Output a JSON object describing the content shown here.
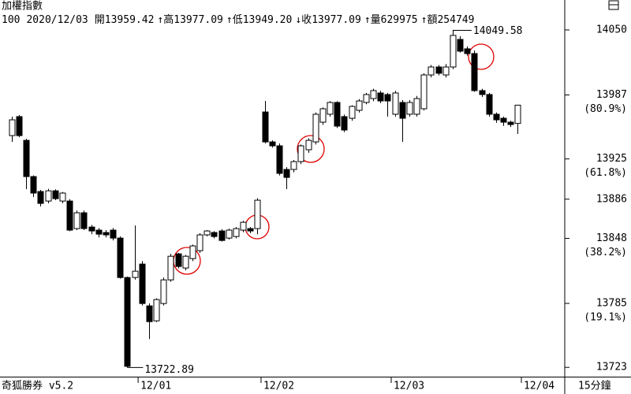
{
  "header": {
    "index_name": "加權指數",
    "count": "100",
    "date": "2020/12/03",
    "items": [
      {
        "label": "開",
        "value": "13959.42"
      },
      {
        "arrow": "↑",
        "label": "高",
        "value": "13977.09"
      },
      {
        "arrow": "↑",
        "label": "低",
        "value": "13949.20"
      },
      {
        "arrow": "↓",
        "label": "收",
        "value": "13977.09"
      },
      {
        "arrow": "↑",
        "label": "量",
        "value": "629975"
      },
      {
        "arrow": "↑",
        "label": "額",
        "value": "254749"
      }
    ]
  },
  "footer": {
    "brand": "奇狐勝券 v5.2",
    "period": "15分鐘"
  },
  "chart_data": {
    "type": "candlestick",
    "open": [
      13947.6,
      13966,
      13943,
      13907.9,
      13893.4,
      13884.2,
      13894.1,
      13884.2,
      13884.2,
      13857.5,
      13872.8,
      13859,
      13856,
      13853.7,
      13856,
      13848.3,
      13810.1,
      13810.1,
      13823.1,
      13782.6,
      13768.1,
      13784.9,
      13807.8,
      13833,
      13819.3,
      13828.4,
      13836.1,
      13851.4,
      13853.7,
      13855.2,
      13848.3,
      13849.8,
      13856,
      13857.5,
      13857.5,
      13970.5,
      13941.5,
      13937.7,
      13914.8,
      13914.8,
      13922.4,
      13933.9,
      13941.5,
      13960.6,
      13968.3,
      13979.7,
      13966,
      13964.4,
      13972.1,
      13979.7,
      13983.5,
      13988.9,
      13987.4,
      13968.3,
      13979.7,
      13968.3,
      13968.3,
      13973.6,
      14006.4,
      14014.1,
      14006.4,
      14014.1,
      14040.8,
      14031.7,
      14027.1,
      13991.2,
      13987.4,
      13968.3,
      13964.4,
      13960.6,
      13959.42
    ],
    "high": [
      13966,
      13967.5,
      13944.5,
      13909,
      13895,
      13896,
      13895.5,
      13893,
      13886,
      13875,
      13875,
      13861,
      13858,
      13856,
      13858,
      13850,
      13811,
      13860.5,
      13826,
      13785,
      13790,
      13810,
      13833,
      13834,
      13832,
      13842,
      13853,
      13856,
      13855,
      13857,
      13857.5,
      13859,
      13865,
      13859,
      13887,
      13981.2,
      13943,
      13940,
      13917,
      13924,
      13939,
      13945,
      13970,
      13975,
      13981,
      13981,
      13968,
      13977,
      13983,
      13989,
      13993,
      13991,
      13989,
      13991,
      13982,
      13982,
      13986,
      14008,
      14016,
      14016,
      14017,
      14049.58,
      14044,
      14034,
      14030,
      13993,
      13989,
      13970,
      13966,
      13962,
      13977.09
    ],
    "low": [
      13941.5,
      13946,
      13895.7,
      13888,
      13878.9,
      13882,
      13885,
      13882,
      13855,
      13856,
      13856,
      13852,
      13849,
      13849,
      13846,
      13809,
      13722.89,
      13808,
      13783,
      13750.5,
      13767,
      13783,
      13806,
      13819,
      13817,
      13826,
      13834,
      13850,
      13848,
      13845,
      13847,
      13848,
      13854,
      13853,
      13852,
      13940,
      13936,
      13909,
      13895.7,
      13912,
      13920,
      13931,
      13939,
      13958,
      13966,
      13955,
      13951,
      13962,
      13970,
      13978,
      13981,
      13979,
      13966,
      13966,
      13941.5,
      13966,
      13966,
      13972,
      14004,
      14006,
      14004,
      14012,
      14028,
      14025,
      13990,
      13985,
      13966,
      13960,
      13957,
      13956,
      13949.2
    ],
    "close": [
      13962.9,
      13947.6,
      13907.9,
      13891.9,
      13881.9,
      13894.1,
      13886.5,
      13891.9,
      13856,
      13872.8,
      13857.5,
      13855.2,
      13852.1,
      13851.4,
      13848.3,
      13810.1,
      13724,
      13816.2,
      13784.9,
      13767.3,
      13788.7,
      13807.8,
      13830.7,
      13820.8,
      13830.7,
      13840.7,
      13851.4,
      13855.2,
      13849.8,
      13846,
      13856,
      13857.5,
      13863.6,
      13855.2,
      13885,
      13941.5,
      13937.7,
      13911,
      13907.1,
      13922.4,
      13937.7,
      13943,
      13968.3,
      13973.6,
      13979.7,
      13956.8,
      13953,
      13975.9,
      13981.2,
      13987.4,
      13991.2,
      13981.2,
      13981.2,
      13988.9,
      13964.4,
      13979.7,
      13983.5,
      14006.4,
      14014.1,
      14008,
      14014.1,
      14044.7,
      14029.4,
      14027.1,
      13991.2,
      13987.4,
      13968.3,
      13962.9,
      13960.6,
      13958.3,
      13977.09
    ],
    "up_color": "#ffffff",
    "down_color": "#000000",
    "ylim": [
      13714,
      14079
    ],
    "yticks": [
      14050,
      13987,
      13925,
      13886,
      13848,
      13785,
      13723
    ],
    "fib_labels": [
      {
        "value": 13987,
        "label": "(80.9%)"
      },
      {
        "value": 13925,
        "label": "(61.8%)"
      },
      {
        "value": 13848,
        "label": "(38.2%)"
      },
      {
        "value": 13785,
        "label": "(19.1%)"
      }
    ],
    "xlim": [
      -1.6,
      76.5
    ],
    "xticks": [
      {
        "value": 17.5,
        "label": "12/01"
      },
      {
        "value": 34.5,
        "label": "12/02"
      },
      {
        "value": 52.5,
        "label": "12/03"
      },
      {
        "value": 70.5,
        "label": "12/04"
      }
    ],
    "annotations": [
      {
        "text": "14049.58"
      },
      {
        "text": "13722.89"
      }
    ]
  }
}
